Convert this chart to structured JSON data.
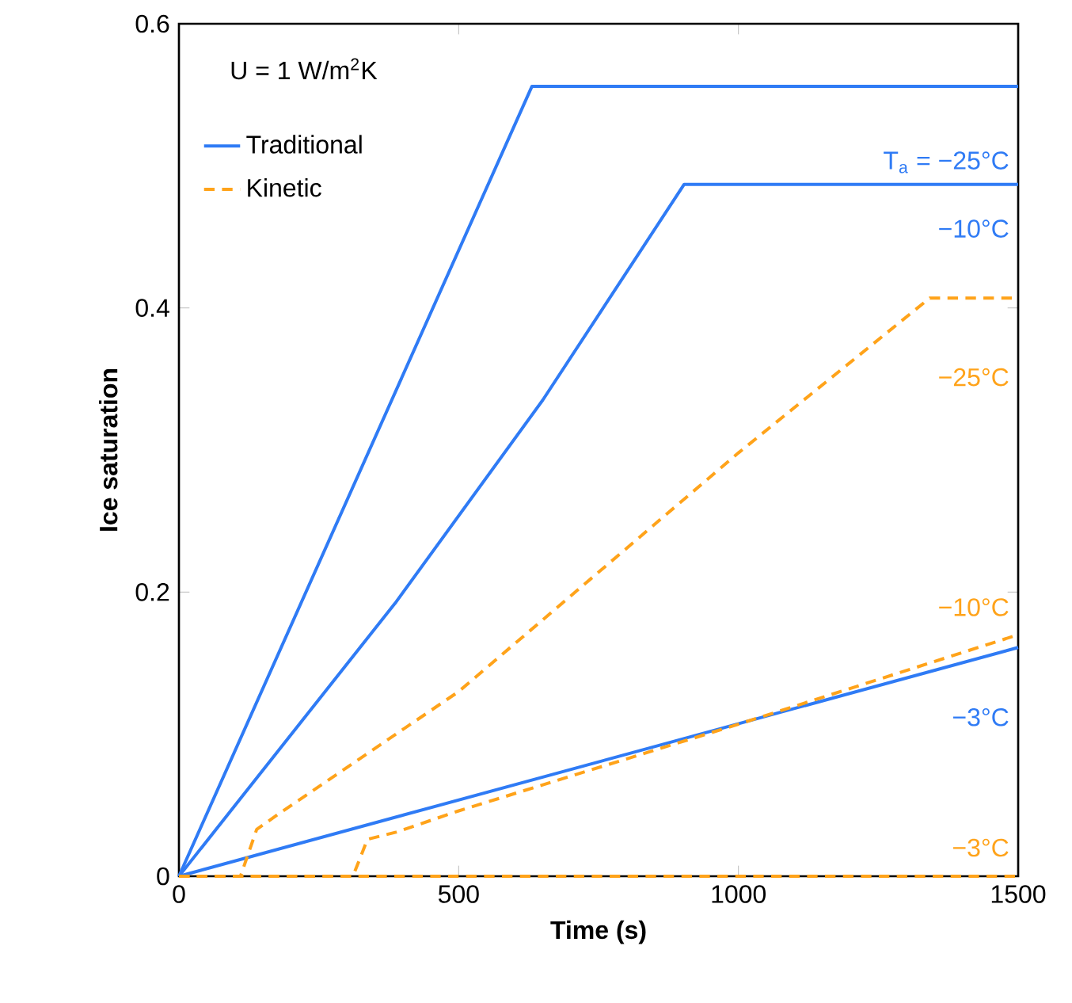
{
  "chart_data": {
    "type": "line",
    "xlabel": "Time (s)",
    "ylabel": "Ice saturation",
    "xlim": [
      0,
      1500
    ],
    "ylim": [
      0,
      0.6
    ],
    "xticks": [
      0,
      500,
      1000,
      1500
    ],
    "yticks": [
      0,
      0.2,
      0.4,
      0.6
    ],
    "grid": false,
    "legend": "top left",
    "series": [
      {
        "name": "Traditional",
        "color": "#2f7bf5",
        "line_style": "solid",
        "x": [
          0,
          631,
          1500
        ],
        "values": [
          0,
          0.556,
          0.556
        ]
      },
      {
        "color": "#2f7bf5",
        "line_style": "solid",
        "x": [
          0,
          388,
          650,
          903,
          1500
        ],
        "values": [
          0,
          0.193,
          0.335,
          0.487,
          0.487
        ]
      },
      {
        "color": "#2f7bf5",
        "line_style": "solid",
        "x": [
          0,
          1500
        ],
        "values": [
          0,
          0.161
        ]
      },
      {
        "name": "Kinetic",
        "color": "#ffa31a",
        "line_style": "dashed",
        "x": [
          0,
          110,
          139,
          175,
          500,
          1000,
          1342,
          1500
        ],
        "values": [
          0,
          0,
          0.033,
          0.043,
          0.13,
          0.298,
          0.407,
          0.407
        ]
      },
      {
        "color": "#ffa31a",
        "line_style": "dashed",
        "x": [
          0,
          311,
          337,
          388,
          500,
          1000,
          1500
        ],
        "values": [
          0,
          0,
          0.026,
          0.031,
          0.046,
          0.107,
          0.17
        ]
      },
      {
        "color": "#ffa31a",
        "line_style": "dashed",
        "x": [
          0,
          1500
        ],
        "values": [
          0,
          0
        ]
      }
    ],
    "annotations": [
      "U = 1 W/m$^{2}$K",
      {
        "text": "T$_{a}$ = −25°C",
        "y": 0.556
      },
      {
        "text": "−10°C",
        "y": 0.487
      },
      {
        "text": "−3°C",
        "y": 0.161
      },
      {
        "text": "−25°C",
        "y": 0.407
      },
      "−10°C",
      {
        "text": "−3°C",
        "y": 0
      }
    ]
  }
}
